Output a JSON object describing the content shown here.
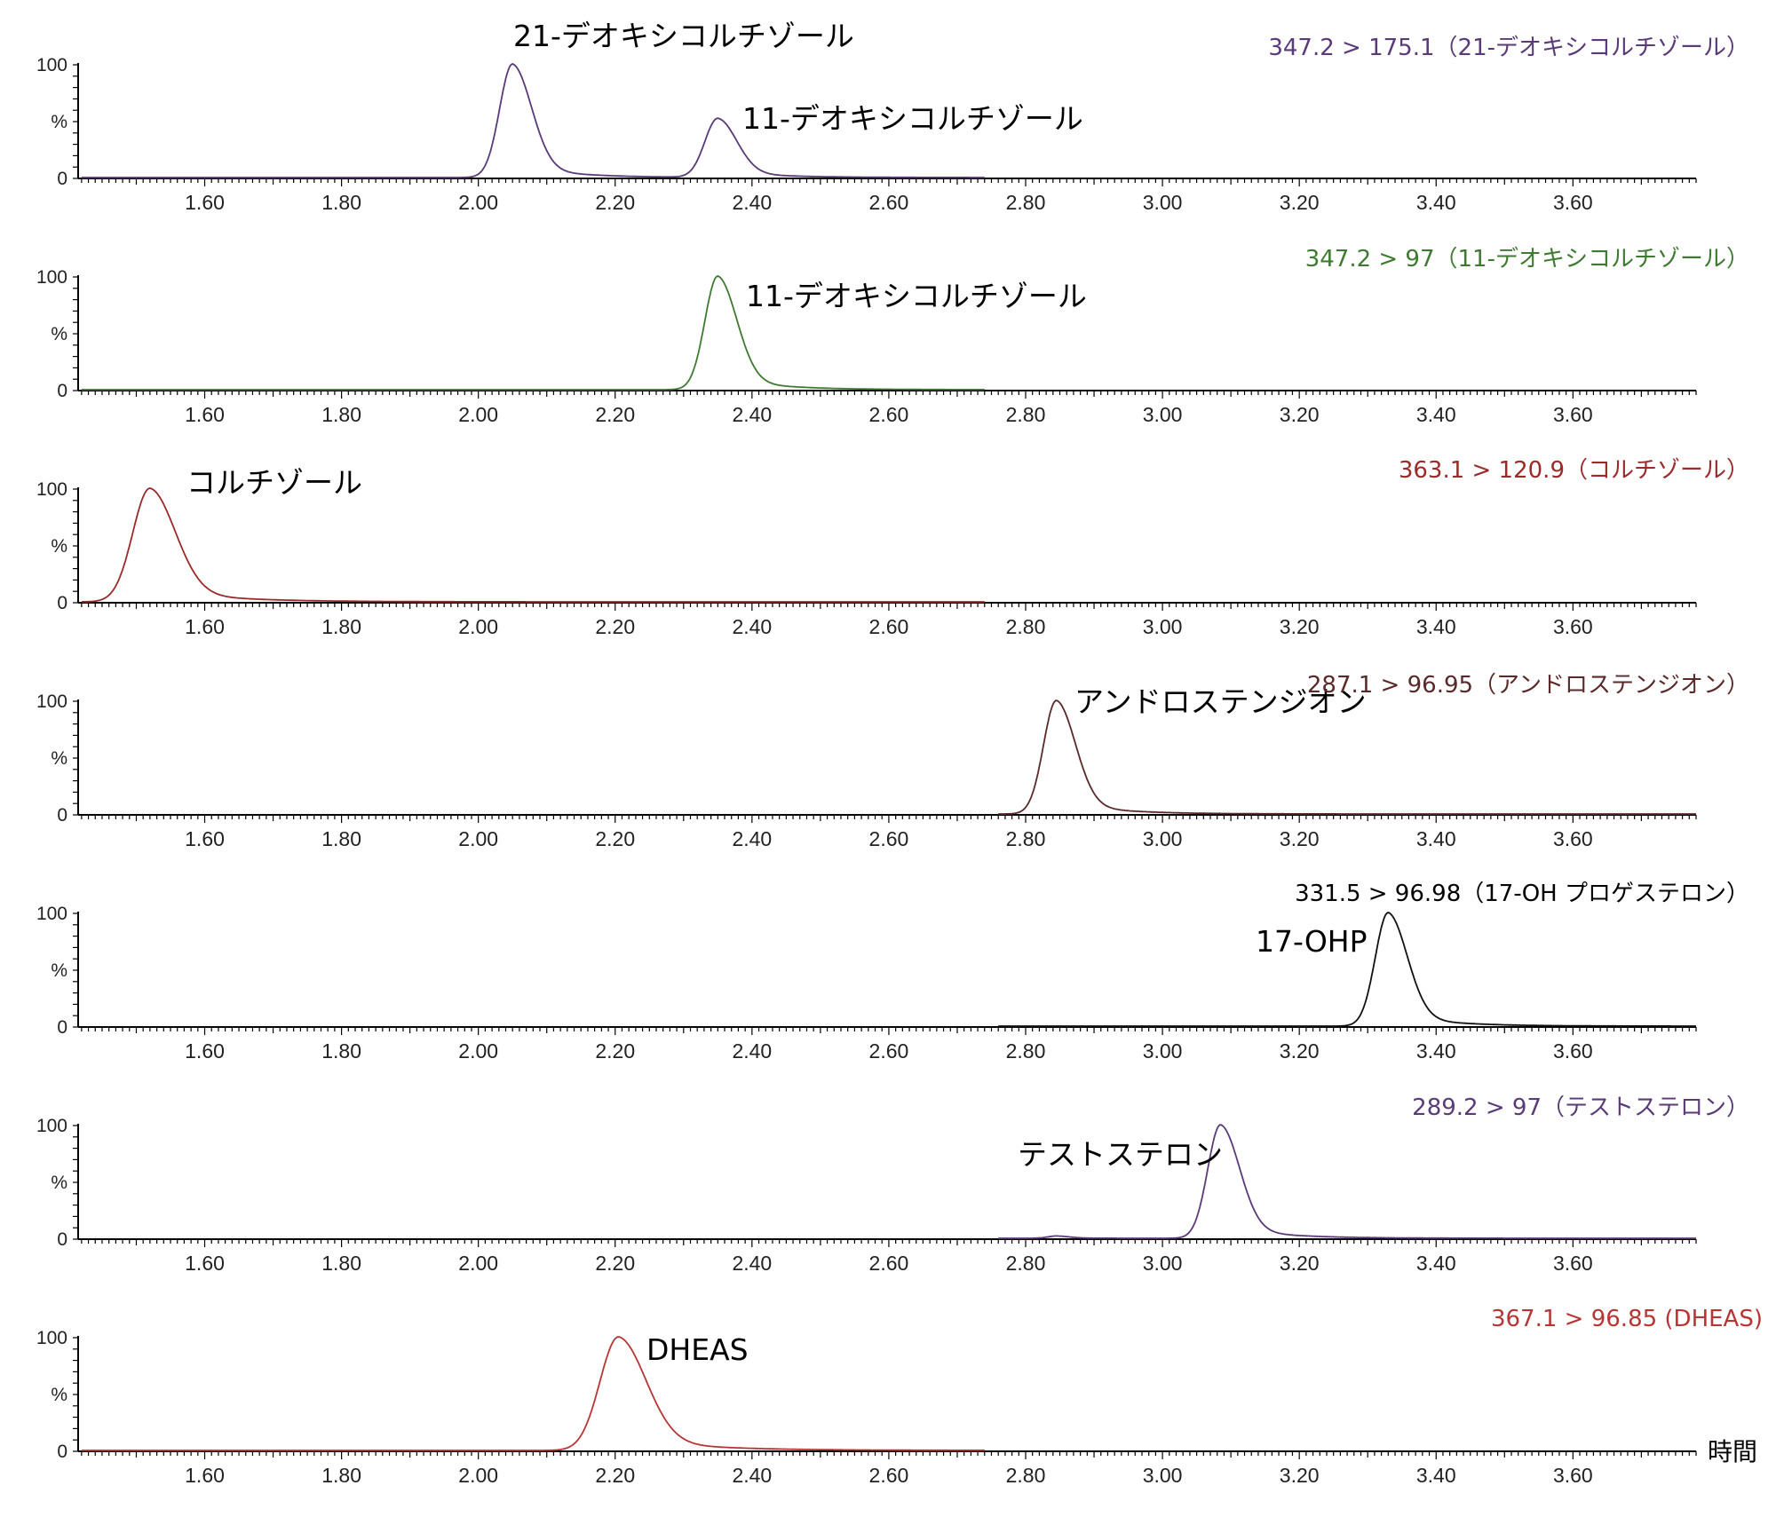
{
  "chart_data": [
    {
      "type": "line",
      "transition": "347.2 > 175.1（21-デオキシコルチゾール）",
      "color": "#5a3a78",
      "yticks": [
        "100",
        "%",
        "0"
      ],
      "xticks": [
        "1.60",
        "1.80",
        "2.00",
        "2.20",
        "2.40",
        "2.60",
        "2.80",
        "3.00",
        "3.20",
        "3.40",
        "3.60"
      ],
      "trace_range": [
        1.42,
        2.74
      ],
      "peaks": [
        {
          "label": "21-デオキシコルチゾール",
          "x": 2.05,
          "height": 100,
          "width": 0.045
        },
        {
          "label": "11-デオキシコルチゾール",
          "x": 2.35,
          "height": 52,
          "width": 0.045
        }
      ]
    },
    {
      "type": "line",
      "transition": "347.2 > 97（11-デオキシコルチゾール）",
      "color": "#3f7a32",
      "yticks": [
        "100",
        "%",
        "0"
      ],
      "xticks": [
        "1.60",
        "1.80",
        "2.00",
        "2.20",
        "2.40",
        "2.60",
        "2.80",
        "3.00",
        "3.20",
        "3.40",
        "3.60"
      ],
      "trace_range": [
        1.42,
        2.74
      ],
      "peaks": [
        {
          "label": "11-デオキシコルチゾール",
          "x": 2.35,
          "height": 100,
          "width": 0.045
        }
      ]
    },
    {
      "type": "line",
      "transition": "363.1 > 120.9（コルチゾール）",
      "color": "#9b2a2a",
      "yticks": [
        "100",
        "%",
        "0"
      ],
      "xticks": [
        "1.60",
        "1.80",
        "2.00",
        "2.20",
        "2.40",
        "2.60",
        "2.80",
        "3.00",
        "3.20",
        "3.40",
        "3.60"
      ],
      "trace_range": [
        1.42,
        2.74
      ],
      "peaks": [
        {
          "label": "コルチゾール",
          "x": 1.52,
          "height": 100,
          "width": 0.06
        }
      ]
    },
    {
      "type": "line",
      "transition": "287.1 > 96.95（アンドロステンジオン）",
      "color": "#5a2a2a",
      "yticks": [
        "100",
        "%",
        "0"
      ],
      "xticks": [
        "1.60",
        "1.80",
        "2.00",
        "2.20",
        "2.40",
        "2.60",
        "2.80",
        "3.00",
        "3.20",
        "3.40",
        "3.60"
      ],
      "trace_range": [
        2.76,
        3.78
      ],
      "peaks": [
        {
          "label": "アンドロステンジオン",
          "x": 2.845,
          "height": 100,
          "width": 0.045
        }
      ]
    },
    {
      "type": "line",
      "transition": "331.5 > 96.98（17-OH プロゲステロン）",
      "color": "#111111",
      "yticks": [
        "100",
        "%",
        "0"
      ],
      "xticks": [
        "1.60",
        "1.80",
        "2.00",
        "2.20",
        "2.40",
        "2.60",
        "2.80",
        "3.00",
        "3.20",
        "3.40",
        "3.60"
      ],
      "trace_range": [
        2.76,
        3.78
      ],
      "peaks": [
        {
          "label": "17-OHP",
          "x": 3.33,
          "height": 100,
          "width": 0.045
        }
      ]
    },
    {
      "type": "line",
      "transition": "289.2 > 97（テストステロン）",
      "color": "#5a3a78",
      "yticks": [
        "100",
        "%",
        "0"
      ],
      "xticks": [
        "1.60",
        "1.80",
        "2.00",
        "2.20",
        "2.40",
        "2.60",
        "2.80",
        "3.00",
        "3.20",
        "3.40",
        "3.60"
      ],
      "trace_range": [
        2.76,
        3.78
      ],
      "peaks": [
        {
          "label": "テストステロン",
          "x": 3.085,
          "height": 100,
          "width": 0.045
        },
        {
          "label": "",
          "x": 2.845,
          "height": 2,
          "width": 0.03
        }
      ]
    },
    {
      "type": "line",
      "transition": "367.1 > 96.85 (DHEAS)",
      "color": "#b83535",
      "yticks": [
        "100",
        "%",
        "0"
      ],
      "xticks": [
        "1.60",
        "1.80",
        "2.00",
        "2.20",
        "2.40",
        "2.60",
        "2.80",
        "3.00",
        "3.20",
        "3.40",
        "3.60"
      ],
      "trace_range": [
        1.42,
        2.74
      ],
      "xlabel": "時間",
      "peaks": [
        {
          "label": "DHEAS",
          "x": 2.205,
          "height": 100,
          "width": 0.065
        }
      ]
    }
  ]
}
